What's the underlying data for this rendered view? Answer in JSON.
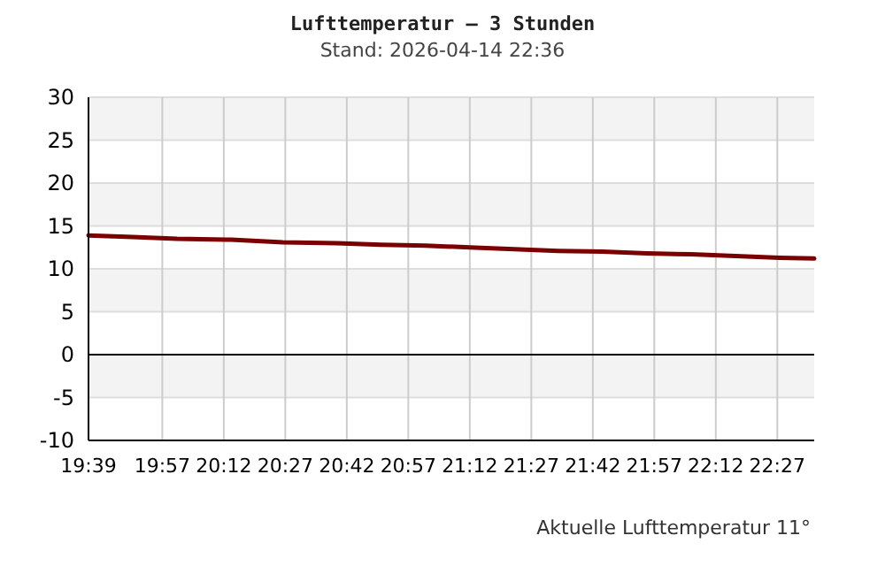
{
  "chart_data": {
    "type": "line",
    "title": "Lufttemperatur – 3 Stunden",
    "subtitle": "Stand: 2026-04-14 22:36",
    "x": [
      19.65,
      19.83,
      20.01,
      20.23,
      20.44,
      20.66,
      20.84,
      21.02,
      21.2,
      21.38,
      21.56,
      21.74,
      21.92,
      22.1,
      22.28,
      22.46,
      22.6
    ],
    "series": [
      {
        "color": "#7a0000",
        "values": [
          13.9,
          13.7,
          13.5,
          13.4,
          13.1,
          13.0,
          12.8,
          12.7,
          12.5,
          12.3,
          12.1,
          12.0,
          11.8,
          11.7,
          11.5,
          11.3,
          11.2
        ]
      }
    ],
    "xlim": [
      19.65,
      22.6
    ],
    "xticks": [
      {
        "value": 19.65,
        "label": "19:39"
      },
      {
        "value": 19.95,
        "label": "19:57"
      },
      {
        "value": 20.2,
        "label": "20:12"
      },
      {
        "value": 20.45,
        "label": "20:27"
      },
      {
        "value": 20.7,
        "label": "20:42"
      },
      {
        "value": 20.95,
        "label": "20:57"
      },
      {
        "value": 21.2,
        "label": "21:12"
      },
      {
        "value": 21.45,
        "label": "21:27"
      },
      {
        "value": 21.7,
        "label": "21:42"
      },
      {
        "value": 21.95,
        "label": "21:57"
      },
      {
        "value": 22.2,
        "label": "22:12"
      },
      {
        "value": 22.45,
        "label": "22:27"
      }
    ],
    "ylim": [
      -10,
      30
    ],
    "yticks": [
      -10,
      -5,
      0,
      5,
      10,
      15,
      20,
      25,
      30
    ],
    "grid": true,
    "ref_lines": [
      {
        "axis": "y",
        "value": 0,
        "color": "#000000"
      }
    ],
    "annotations": [
      "Aktuelle Lufttemperatur 11°"
    ],
    "marker": "none",
    "line_style": "solid"
  }
}
